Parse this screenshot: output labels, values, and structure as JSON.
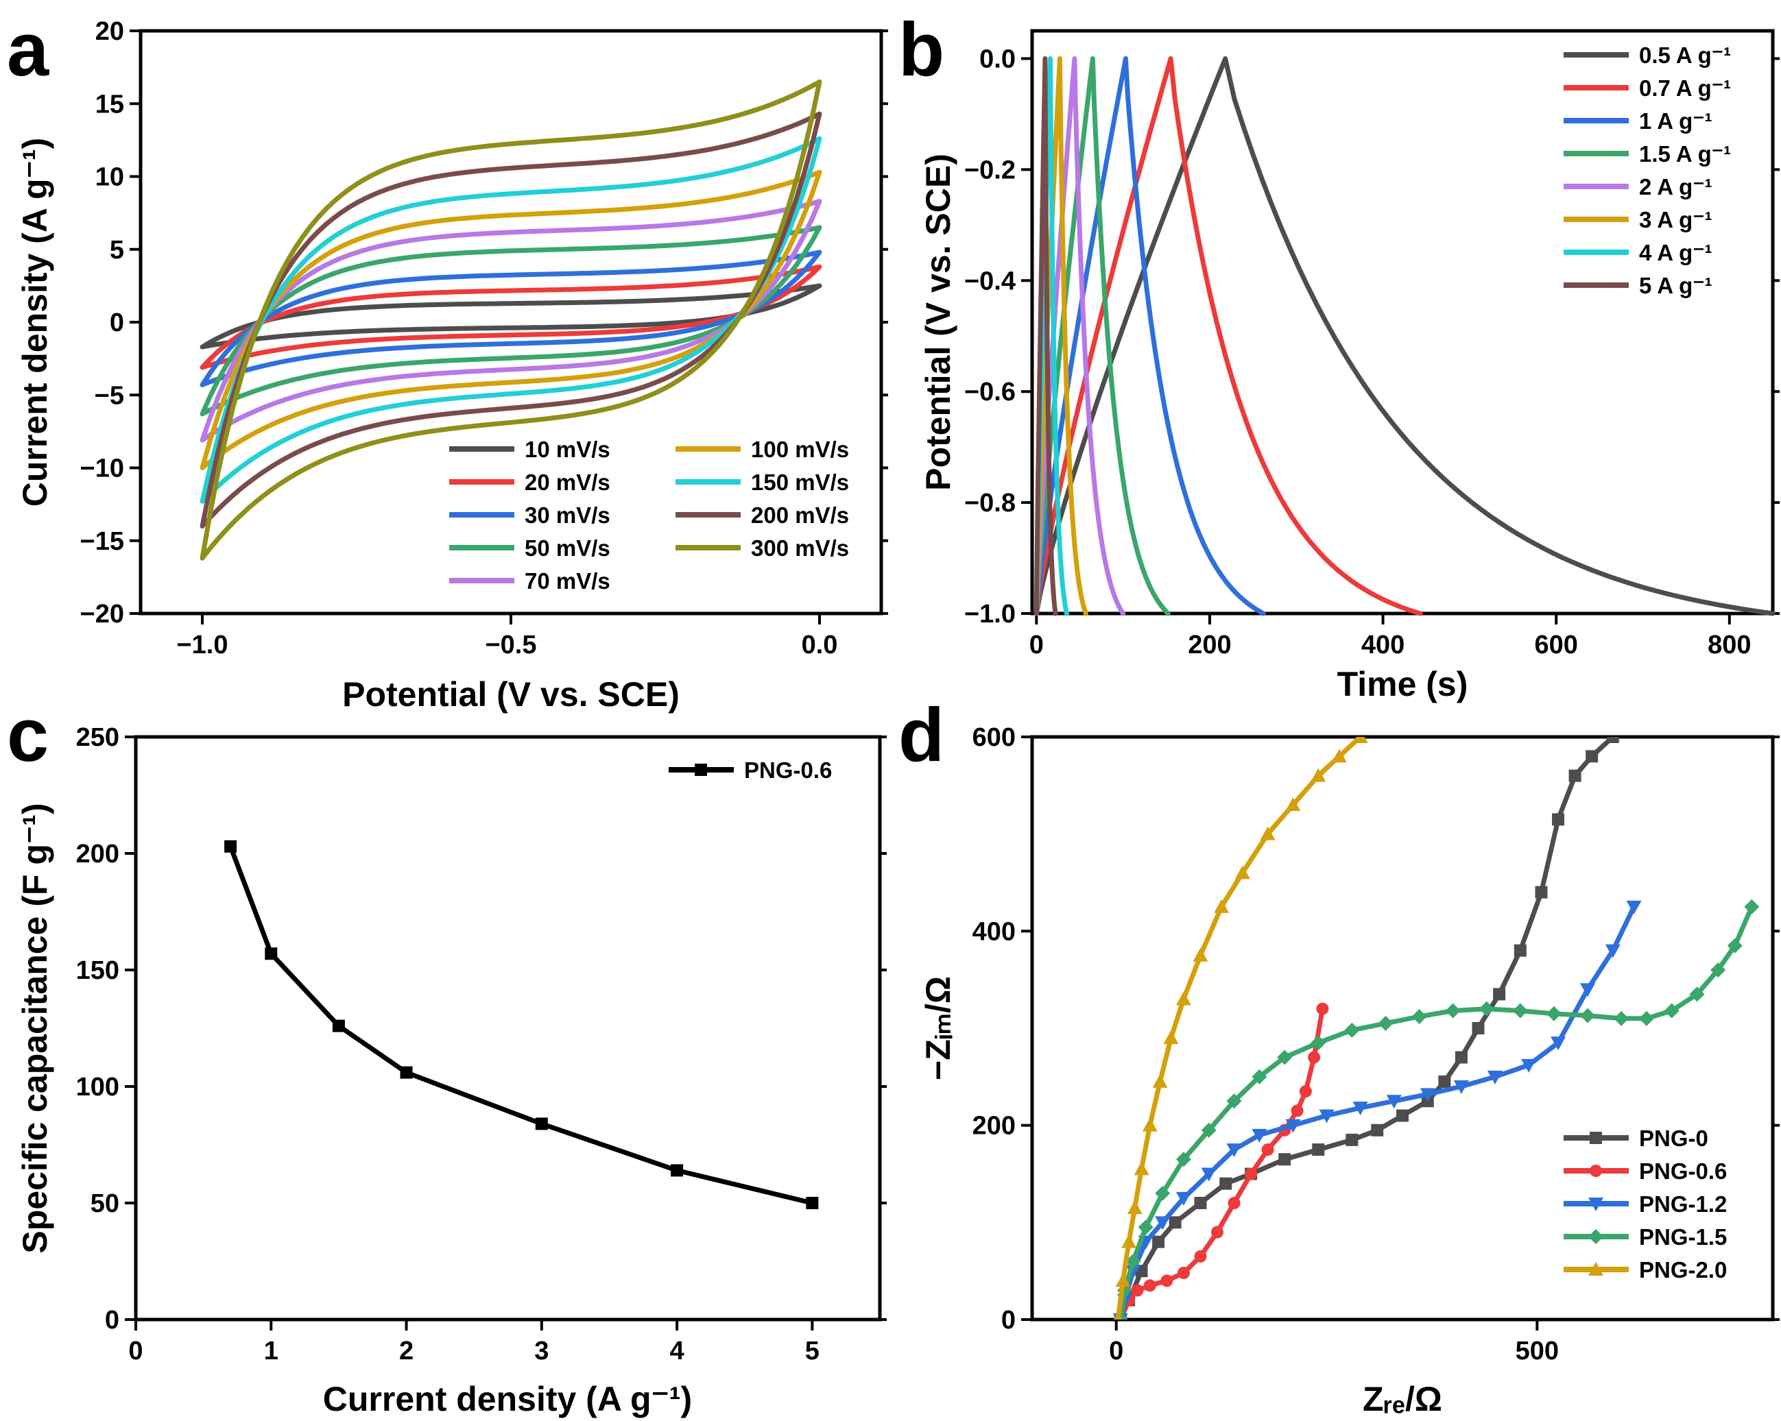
{
  "chart_data": [
    {
      "panel": "a",
      "type": "line",
      "xlabel": "Potential (V vs. SCE)",
      "ylabel": "Current density (A g⁻¹)",
      "xlim": [
        -1.1,
        0.1
      ],
      "ylim": [
        -20,
        20
      ],
      "xticks": [
        -1.0,
        -0.5,
        0.0
      ],
      "xtick_labels": [
        "−1.0",
        "−0.5",
        "0.0"
      ],
      "yticks": [
        -20,
        -15,
        -10,
        -5,
        0,
        5,
        10,
        15,
        20
      ],
      "ytick_labels": [
        "−20",
        "−15",
        "−10",
        "−5",
        "0",
        "5",
        "10",
        "15",
        "20"
      ],
      "legend_position": "bottom-right",
      "series": [
        {
          "name": "10 mV/s",
          "color": "#4d4d4d",
          "upper_plateau": 1.3,
          "lower_plateau": -0.4,
          "max_current": 2.5,
          "min_current": -1.7
        },
        {
          "name": "20 mV/s",
          "color": "#ee3a3a",
          "upper_plateau": 2.2,
          "lower_plateau": -0.9,
          "max_current": 3.8,
          "min_current": -3.1
        },
        {
          "name": "30 mV/s",
          "color": "#2e6fdc",
          "upper_plateau": 3.3,
          "lower_plateau": -1.5,
          "max_current": 4.8,
          "min_current": -4.3
        },
        {
          "name": "50 mV/s",
          "color": "#3aa66a",
          "upper_plateau": 5.0,
          "lower_plateau": -2.5,
          "max_current": 6.5,
          "min_current": -6.3
        },
        {
          "name": "70 mV/s",
          "color": "#b878e6",
          "upper_plateau": 6.3,
          "lower_plateau": -3.3,
          "max_current": 8.3,
          "min_current": -8.1
        },
        {
          "name": "100 mV/s",
          "color": "#d4a00b",
          "upper_plateau": 7.5,
          "lower_plateau": -4.2,
          "max_current": 10.3,
          "min_current": -10.0
        },
        {
          "name": "150 mV/s",
          "color": "#22cfd6",
          "upper_plateau": 9.0,
          "lower_plateau": -5.0,
          "max_current": 12.6,
          "min_current": -12.3
        },
        {
          "name": "200 mV/s",
          "color": "#7a4b4b",
          "upper_plateau": 10.8,
          "lower_plateau": -6.0,
          "max_current": 14.3,
          "min_current": -14.0
        },
        {
          "name": "300 mV/s",
          "color": "#8f8f1a",
          "upper_plateau": 12.5,
          "lower_plateau": -7.0,
          "max_current": 16.5,
          "min_current": -16.2
        }
      ]
    },
    {
      "panel": "b",
      "type": "line",
      "xlabel": "Time (s)",
      "ylabel": "Potential (V vs. SCE)",
      "xlim": [
        -5,
        850
      ],
      "ylim": [
        -1.0,
        0.05
      ],
      "xticks": [
        0,
        200,
        400,
        600,
        800
      ],
      "xtick_labels": [
        "0",
        "200",
        "400",
        "600",
        "800"
      ],
      "yticks": [
        -1.0,
        -0.8,
        -0.6,
        -0.4,
        -0.2,
        0.0
      ],
      "ytick_labels": [
        "−1.0",
        "−0.8",
        "−0.6",
        "−0.4",
        "−0.2",
        "0.0"
      ],
      "legend_position": "top-right",
      "series": [
        {
          "name": "0.5 A g⁻¹",
          "color": "#4d4d4d",
          "charge_time": 218,
          "end_time": 850
        },
        {
          "name": "0.7 A g⁻¹",
          "color": "#ee3a3a",
          "charge_time": 155,
          "end_time": 443
        },
        {
          "name": "1 A g⁻¹",
          "color": "#2e6fdc",
          "charge_time": 103,
          "end_time": 262
        },
        {
          "name": "1.5 A g⁻¹",
          "color": "#3aa66a",
          "charge_time": 65,
          "end_time": 152
        },
        {
          "name": "2 A g⁻¹",
          "color": "#b878e6",
          "charge_time": 44,
          "end_time": 100
        },
        {
          "name": "3 A g⁻¹",
          "color": "#d4a00b",
          "charge_time": 27,
          "end_time": 57
        },
        {
          "name": "4 A g⁻¹",
          "color": "#22cfd6",
          "charge_time": 16,
          "end_time": 35
        },
        {
          "name": "5 A g⁻¹",
          "color": "#7a4b4b",
          "charge_time": 10,
          "end_time": 22
        }
      ]
    },
    {
      "panel": "c",
      "type": "line",
      "xlabel": "Current density (A g⁻¹)",
      "ylabel": "Specific capacitance (F g⁻¹)",
      "xlim": [
        0,
        5.5
      ],
      "ylim": [
        0,
        250
      ],
      "xticks": [
        0,
        1,
        2,
        3,
        4,
        5
      ],
      "xtick_labels": [
        "0",
        "1",
        "2",
        "3",
        "4",
        "5"
      ],
      "yticks": [
        0,
        50,
        100,
        150,
        200,
        250
      ],
      "ytick_labels": [
        "0",
        "50",
        "100",
        "150",
        "200",
        "250"
      ],
      "legend_position": "top-right",
      "series": [
        {
          "name": "PNG-0.6",
          "color": "#000000",
          "x": [
            0.7,
            1,
            1.5,
            2,
            3,
            4,
            5
          ],
          "y": [
            203,
            157,
            126,
            106,
            84,
            64,
            50
          ]
        }
      ]
    },
    {
      "panel": "d",
      "type": "scatter",
      "xlabel": "Zᵣₑ/Ω",
      "ylabel": "−Zᵢₘ/Ω",
      "xlim": [
        -100,
        780
      ],
      "ylim": [
        0,
        600
      ],
      "xticks": [
        0,
        500
      ],
      "xtick_labels": [
        "0",
        "500"
      ],
      "yticks": [
        0,
        200,
        400,
        600
      ],
      "ytick_labels": [
        "0",
        "200",
        "400",
        "600"
      ],
      "legend_position": "bottom-right",
      "series": [
        {
          "name": "PNG-0",
          "color": "#4d4d4d",
          "marker": "square",
          "x": [
            5,
            15,
            30,
            50,
            70,
            100,
            130,
            160,
            200,
            240,
            280,
            310,
            340,
            370,
            390,
            410,
            430,
            455,
            480,
            505,
            525,
            545,
            565,
            590
          ],
          "y": [
            0,
            20,
            50,
            80,
            100,
            120,
            140,
            150,
            165,
            175,
            185,
            195,
            210,
            225,
            245,
            270,
            300,
            335,
            380,
            440,
            515,
            560,
            580,
            600
          ]
        },
        {
          "name": "PNG-0.6",
          "color": "#ee3a3a",
          "marker": "circle",
          "x": [
            5,
            15,
            25,
            40,
            60,
            80,
            100,
            120,
            140,
            160,
            180,
            200,
            215,
            225,
            235,
            245
          ],
          "y": [
            0,
            20,
            30,
            35,
            40,
            48,
            65,
            90,
            120,
            150,
            175,
            195,
            215,
            235,
            270,
            320
          ]
        },
        {
          "name": "PNG-1.2",
          "color": "#2e6fdc",
          "marker": "triangle-down",
          "x": [
            5,
            10,
            20,
            35,
            55,
            80,
            110,
            140,
            170,
            210,
            250,
            290,
            330,
            370,
            410,
            450,
            490,
            525,
            560,
            590,
            615
          ],
          "y": [
            0,
            20,
            50,
            80,
            100,
            125,
            150,
            175,
            190,
            200,
            210,
            218,
            225,
            232,
            240,
            250,
            262,
            285,
            340,
            380,
            425
          ]
        },
        {
          "name": "PNG-1.5",
          "color": "#3aa66a",
          "marker": "diamond",
          "x": [
            5,
            10,
            20,
            35,
            55,
            80,
            110,
            140,
            170,
            200,
            240,
            280,
            320,
            360,
            400,
            440,
            480,
            520,
            560,
            600,
            630,
            660,
            690,
            715,
            735,
            755
          ],
          "y": [
            0,
            30,
            60,
            95,
            130,
            165,
            195,
            225,
            250,
            270,
            285,
            298,
            305,
            312,
            318,
            320,
            318,
            315,
            313,
            310,
            310,
            318,
            335,
            360,
            385,
            425
          ]
        },
        {
          "name": "PNG-2.0",
          "color": "#d4a00b",
          "marker": "triangle-up",
          "x": [
            2,
            8,
            15,
            22,
            30,
            40,
            52,
            65,
            80,
            100,
            125,
            150,
            180,
            210,
            240,
            265,
            290
          ],
          "y": [
            0,
            40,
            80,
            115,
            155,
            200,
            245,
            290,
            330,
            375,
            425,
            460,
            500,
            530,
            560,
            580,
            600
          ]
        }
      ]
    }
  ],
  "panels": {
    "a": {
      "letter": "a",
      "xlabel": "Potential (V vs. SCE)",
      "ylabel": "Current density (A g⁻¹)"
    },
    "b": {
      "letter": "b",
      "xlabel": "Time (s)",
      "ylabel": "Potential (V vs. SCE)"
    },
    "c": {
      "letter": "c",
      "xlabel": "Current density (A g⁻¹)",
      "ylabel": "Specific capacitance (F g⁻¹)"
    },
    "d": {
      "letter": "d",
      "xlabel": "Zᵣₑ/Ω",
      "ylabel": "−Zᵢₘ/Ω"
    }
  }
}
